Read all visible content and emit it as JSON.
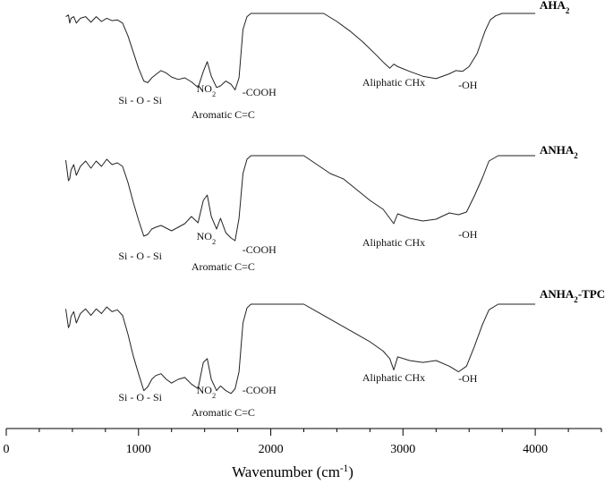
{
  "chart_data": {
    "type": "line",
    "title": "",
    "xlabel": "Wavenumber (cm⁻¹)",
    "xlabel_parts": [
      "Wavenumber (cm",
      "-1",
      ")"
    ],
    "ylabel": "",
    "xlim": [
      0,
      4500
    ],
    "xticks": [
      0,
      1000,
      2000,
      3000,
      4000
    ],
    "grid": false,
    "legend": "none",
    "series": [
      {
        "name": "AHA2",
        "name_parts": [
          "AHA",
          "2",
          ""
        ],
        "points": [
          [
            450,
            0.04
          ],
          [
            470,
            0.02
          ],
          [
            480,
            0.12
          ],
          [
            490,
            0.06
          ],
          [
            510,
            0.04
          ],
          [
            530,
            0.12
          ],
          [
            560,
            0.06
          ],
          [
            600,
            0.04
          ],
          [
            640,
            0.11
          ],
          [
            680,
            0.04
          ],
          [
            720,
            0.1
          ],
          [
            760,
            0.06
          ],
          [
            800,
            0.09
          ],
          [
            840,
            0.08
          ],
          [
            880,
            0.12
          ],
          [
            920,
            0.28
          ],
          [
            960,
            0.48
          ],
          [
            1000,
            0.68
          ],
          [
            1040,
            0.84
          ],
          [
            1070,
            0.86
          ],
          [
            1100,
            0.8
          ],
          [
            1130,
            0.76
          ],
          [
            1170,
            0.71
          ],
          [
            1210,
            0.74
          ],
          [
            1250,
            0.79
          ],
          [
            1300,
            0.82
          ],
          [
            1350,
            0.8
          ],
          [
            1400,
            0.85
          ],
          [
            1450,
            0.92
          ],
          [
            1490,
            0.72
          ],
          [
            1520,
            0.6
          ],
          [
            1550,
            0.78
          ],
          [
            1590,
            0.92
          ],
          [
            1620,
            0.9
          ],
          [
            1660,
            0.84
          ],
          [
            1700,
            0.88
          ],
          [
            1730,
            0.95
          ],
          [
            1760,
            0.8
          ],
          [
            1790,
            0.2
          ],
          [
            1820,
            0.04
          ],
          [
            1850,
            0.0
          ],
          [
            2400,
            0.0
          ],
          [
            2500,
            0.1
          ],
          [
            2600,
            0.22
          ],
          [
            2700,
            0.36
          ],
          [
            2800,
            0.52
          ],
          [
            2860,
            0.62
          ],
          [
            2900,
            0.68
          ],
          [
            2930,
            0.63
          ],
          [
            2960,
            0.66
          ],
          [
            3050,
            0.72
          ],
          [
            3150,
            0.78
          ],
          [
            3250,
            0.81
          ],
          [
            3350,
            0.75
          ],
          [
            3400,
            0.71
          ],
          [
            3450,
            0.72
          ],
          [
            3500,
            0.66
          ],
          [
            3560,
            0.5
          ],
          [
            3620,
            0.22
          ],
          [
            3660,
            0.08
          ],
          [
            3700,
            0.03
          ],
          [
            3750,
            0.0
          ],
          [
            4000,
            0.0
          ]
        ],
        "annotations": [
          {
            "text": "Si - O - Si",
            "x": 1040
          },
          {
            "text": "NO2",
            "text_parts": [
              "NO",
              "2"
            ],
            "x": 1520
          },
          {
            "text": "Aromatic C=C",
            "x": 1640
          },
          {
            "text": "-COOH",
            "x": 1880
          },
          {
            "text": "Aliphatic CHx",
            "x": 2930
          },
          {
            "text": "-OH",
            "x": 3450
          }
        ]
      },
      {
        "name": "ANHA2",
        "name_parts": [
          "ANHA",
          "2",
          ""
        ],
        "points": [
          [
            450,
            0.05
          ],
          [
            470,
            0.28
          ],
          [
            480,
            0.26
          ],
          [
            490,
            0.16
          ],
          [
            510,
            0.1
          ],
          [
            530,
            0.22
          ],
          [
            560,
            0.12
          ],
          [
            600,
            0.06
          ],
          [
            640,
            0.14
          ],
          [
            680,
            0.06
          ],
          [
            720,
            0.12
          ],
          [
            760,
            0.04
          ],
          [
            800,
            0.1
          ],
          [
            840,
            0.08
          ],
          [
            880,
            0.12
          ],
          [
            920,
            0.3
          ],
          [
            960,
            0.52
          ],
          [
            1000,
            0.72
          ],
          [
            1040,
            0.9
          ],
          [
            1070,
            0.88
          ],
          [
            1100,
            0.82
          ],
          [
            1130,
            0.8
          ],
          [
            1170,
            0.78
          ],
          [
            1210,
            0.81
          ],
          [
            1250,
            0.84
          ],
          [
            1300,
            0.8
          ],
          [
            1350,
            0.76
          ],
          [
            1400,
            0.68
          ],
          [
            1450,
            0.75
          ],
          [
            1490,
            0.5
          ],
          [
            1520,
            0.44
          ],
          [
            1550,
            0.68
          ],
          [
            1590,
            0.82
          ],
          [
            1620,
            0.7
          ],
          [
            1660,
            0.86
          ],
          [
            1700,
            0.92
          ],
          [
            1730,
            0.95
          ],
          [
            1760,
            0.7
          ],
          [
            1790,
            0.2
          ],
          [
            1820,
            0.04
          ],
          [
            1850,
            0.0
          ],
          [
            2250,
            0.0
          ],
          [
            2350,
            0.1
          ],
          [
            2450,
            0.2
          ],
          [
            2550,
            0.26
          ],
          [
            2650,
            0.38
          ],
          [
            2750,
            0.5
          ],
          [
            2850,
            0.6
          ],
          [
            2900,
            0.7
          ],
          [
            2930,
            0.76
          ],
          [
            2960,
            0.65
          ],
          [
            3050,
            0.7
          ],
          [
            3150,
            0.73
          ],
          [
            3250,
            0.71
          ],
          [
            3350,
            0.64
          ],
          [
            3420,
            0.66
          ],
          [
            3480,
            0.63
          ],
          [
            3540,
            0.45
          ],
          [
            3600,
            0.25
          ],
          [
            3650,
            0.06
          ],
          [
            3720,
            0.0
          ],
          [
            4000,
            0.0
          ]
        ],
        "annotations": [
          {
            "text": "Si - O - Si",
            "x": 1040
          },
          {
            "text": "NO2",
            "text_parts": [
              "NO",
              "2"
            ],
            "x": 1520
          },
          {
            "text": "Aromatic C=C",
            "x": 1640
          },
          {
            "text": "-COOH",
            "x": 1880
          },
          {
            "text": "Aliphatic CHx",
            "x": 2930
          },
          {
            "text": "-OH",
            "x": 3450
          }
        ]
      },
      {
        "name": "ANHA2-TPC",
        "name_parts": [
          "ANHA",
          "2",
          "-TPC"
        ],
        "points": [
          [
            450,
            0.05
          ],
          [
            470,
            0.25
          ],
          [
            480,
            0.22
          ],
          [
            490,
            0.13
          ],
          [
            510,
            0.08
          ],
          [
            530,
            0.2
          ],
          [
            560,
            0.1
          ],
          [
            600,
            0.05
          ],
          [
            640,
            0.12
          ],
          [
            680,
            0.05
          ],
          [
            720,
            0.1
          ],
          [
            760,
            0.03
          ],
          [
            800,
            0.08
          ],
          [
            840,
            0.06
          ],
          [
            880,
            0.12
          ],
          [
            920,
            0.32
          ],
          [
            960,
            0.55
          ],
          [
            1000,
            0.74
          ],
          [
            1040,
            0.92
          ],
          [
            1070,
            0.88
          ],
          [
            1100,
            0.8
          ],
          [
            1130,
            0.76
          ],
          [
            1170,
            0.74
          ],
          [
            1210,
            0.8
          ],
          [
            1250,
            0.84
          ],
          [
            1300,
            0.8
          ],
          [
            1350,
            0.78
          ],
          [
            1400,
            0.85
          ],
          [
            1450,
            0.9
          ],
          [
            1490,
            0.62
          ],
          [
            1520,
            0.58
          ],
          [
            1550,
            0.8
          ],
          [
            1590,
            0.92
          ],
          [
            1620,
            0.87
          ],
          [
            1660,
            0.92
          ],
          [
            1700,
            0.95
          ],
          [
            1730,
            0.9
          ],
          [
            1760,
            0.72
          ],
          [
            1790,
            0.2
          ],
          [
            1820,
            0.04
          ],
          [
            1850,
            0.0
          ],
          [
            2250,
            0.0
          ],
          [
            2350,
            0.08
          ],
          [
            2450,
            0.16
          ],
          [
            2550,
            0.24
          ],
          [
            2650,
            0.32
          ],
          [
            2750,
            0.4
          ],
          [
            2850,
            0.5
          ],
          [
            2900,
            0.58
          ],
          [
            2930,
            0.7
          ],
          [
            2960,
            0.56
          ],
          [
            3050,
            0.6
          ],
          [
            3150,
            0.62
          ],
          [
            3250,
            0.6
          ],
          [
            3350,
            0.66
          ],
          [
            3420,
            0.72
          ],
          [
            3480,
            0.66
          ],
          [
            3540,
            0.45
          ],
          [
            3600,
            0.22
          ],
          [
            3650,
            0.06
          ],
          [
            3720,
            0.0
          ],
          [
            4000,
            0.0
          ]
        ],
        "annotations": [
          {
            "text": "Si - O - Si",
            "x": 1040
          },
          {
            "text": "NO2",
            "text_parts": [
              "NO",
              "2"
            ],
            "x": 1520
          },
          {
            "text": "Aromatic C=C",
            "x": 1640
          },
          {
            "text": "-COOH",
            "x": 1880
          },
          {
            "text": "Aliphatic CHx",
            "x": 2930
          },
          {
            "text": "-OH",
            "x": 3450
          }
        ]
      }
    ]
  }
}
